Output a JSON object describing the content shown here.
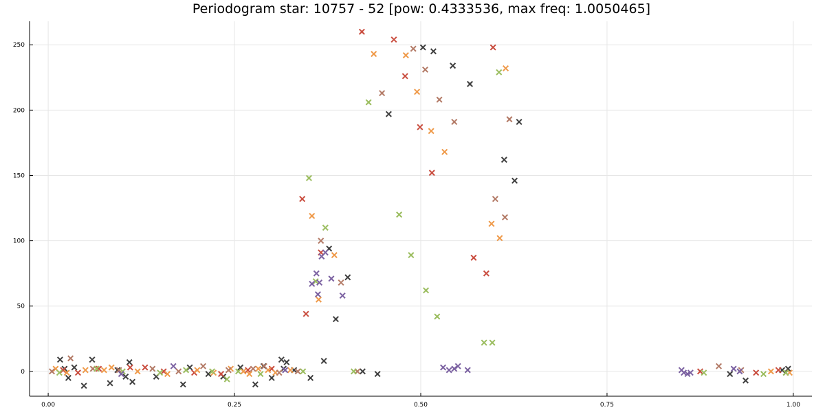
{
  "chart_data": {
    "type": "scatter",
    "title": "Periodogram star: 10757 - 52 [pow: 0.4333536, max freq: 1.0050465]",
    "xlabel": "",
    "ylabel": "",
    "xlim": [
      -0.025,
      1.025
    ],
    "ylim": [
      -19,
      268
    ],
    "xticks": [
      0.0,
      0.25,
      0.5,
      0.75,
      1.0
    ],
    "xtick_labels": [
      "0.00",
      "0.25",
      "0.50",
      "0.75",
      "1.00"
    ],
    "yticks": [
      0,
      50,
      100,
      150,
      200,
      250
    ],
    "ytick_labels": [
      "0",
      "50",
      "100",
      "150",
      "200",
      "250"
    ],
    "grid": true,
    "legend": "none",
    "marker": "x",
    "series": [
      {
        "color": "#3f3f3f",
        "x": [
          0.016,
          0.022,
          0.027,
          0.035,
          0.048,
          0.059,
          0.083,
          0.093,
          0.104,
          0.109,
          0.113,
          0.145,
          0.181,
          0.19,
          0.215,
          0.235,
          0.258,
          0.278,
          0.289,
          0.3,
          0.313,
          0.316,
          0.32,
          0.33,
          0.352,
          0.37,
          0.377,
          0.386,
          0.402,
          0.422,
          0.442,
          0.457,
          0.503,
          0.517,
          0.543,
          0.566,
          0.612,
          0.626,
          0.632,
          0.915,
          0.936,
          0.985,
          0.99,
          0.993
        ],
        "y": [
          9,
          2,
          -5,
          3,
          -11,
          9,
          -9,
          1,
          -4,
          7,
          -8,
          -4,
          -10,
          3,
          -2,
          -4,
          3,
          -10,
          4,
          -5,
          9,
          2,
          7,
          1,
          -5,
          8,
          94,
          40,
          72,
          0,
          -2,
          197,
          248,
          245,
          234,
          220,
          162,
          146,
          191,
          -2,
          -7,
          1,
          -1,
          2
        ]
      },
      {
        "color": "#c94c3e",
        "x": [
          0.02,
          0.04,
          0.068,
          0.11,
          0.13,
          0.155,
          0.196,
          0.232,
          0.268,
          0.3,
          0.341,
          0.346,
          0.366,
          0.421,
          0.464,
          0.479,
          0.499,
          0.515,
          0.571,
          0.588,
          0.597,
          0.875,
          0.95,
          0.98
        ],
        "y": [
          1,
          -1,
          2,
          3,
          3,
          0,
          -1,
          -2,
          1,
          2,
          132,
          44,
          91,
          260,
          254,
          226,
          187,
          152,
          87,
          75,
          248,
          0,
          -1,
          1
        ]
      },
      {
        "color": "#ef9a4a",
        "x": [
          0.01,
          0.025,
          0.05,
          0.075,
          0.085,
          0.12,
          0.16,
          0.2,
          0.222,
          0.245,
          0.262,
          0.27,
          0.282,
          0.295,
          0.305,
          0.325,
          0.354,
          0.363,
          0.384,
          0.437,
          0.48,
          0.495,
          0.514,
          0.532,
          0.595,
          0.606,
          0.614,
          0.97,
          0.995
        ],
        "y": [
          2,
          -1,
          1,
          1,
          3,
          0,
          -2,
          1,
          -1,
          2,
          0,
          -2,
          2,
          1,
          -1,
          1,
          119,
          55,
          89,
          243,
          242,
          214,
          184,
          168,
          113,
          102,
          232,
          0,
          -1
        ]
      },
      {
        "color": "#b37a66",
        "x": [
          0.005,
          0.03,
          0.06,
          0.095,
          0.14,
          0.175,
          0.208,
          0.242,
          0.275,
          0.29,
          0.31,
          0.335,
          0.366,
          0.393,
          0.415,
          0.448,
          0.49,
          0.506,
          0.525,
          0.545,
          0.6,
          0.613,
          0.619,
          0.9,
          0.93
        ],
        "y": [
          0,
          10,
          2,
          1,
          2,
          0,
          4,
          1,
          2,
          4,
          -1,
          0,
          100,
          68,
          0,
          213,
          247,
          231,
          208,
          191,
          132,
          118,
          193,
          4,
          1
        ]
      },
      {
        "color": "#9bbd5f",
        "x": [
          0.015,
          0.065,
          0.1,
          0.15,
          0.185,
          0.22,
          0.24,
          0.255,
          0.285,
          0.342,
          0.35,
          0.359,
          0.372,
          0.41,
          0.43,
          0.471,
          0.487,
          0.507,
          0.522,
          0.585,
          0.596,
          0.605,
          0.88,
          0.96,
          0.99
        ],
        "y": [
          -1,
          2,
          0,
          -1,
          1,
          0,
          -6,
          0,
          -2,
          0,
          148,
          69,
          110,
          0,
          206,
          120,
          89,
          62,
          42,
          22,
          22,
          229,
          -1,
          -2,
          -1
        ]
      },
      {
        "color": "#7b61a1",
        "x": [
          0.098,
          0.168,
          0.318,
          0.354,
          0.36,
          0.362,
          0.364,
          0.367,
          0.372,
          0.38,
          0.395,
          0.53,
          0.538,
          0.545,
          0.55,
          0.563,
          0.85,
          0.853,
          0.858,
          0.862,
          0.92,
          0.928
        ],
        "y": [
          -2,
          4,
          1,
          67,
          75,
          59,
          68,
          88,
          91,
          71,
          58,
          3,
          1,
          2,
          4,
          1,
          1,
          -1,
          -2,
          -1,
          2,
          0
        ]
      }
    ]
  }
}
